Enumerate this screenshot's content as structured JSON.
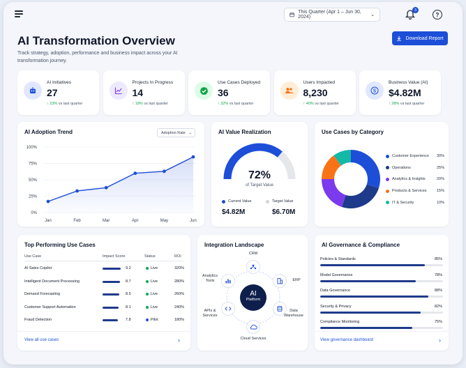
{
  "header": {
    "date_range": "This Quarter (Apr 1 – Jun 30, 2024)",
    "notifications": "3",
    "title": "AI Transformation Overview",
    "subtitle": "Track strategy, adoption, performance and business impact across your AI transformation journey.",
    "download_label": "Download Report"
  },
  "kpis": [
    {
      "label": "AI Initiatives",
      "value": "27",
      "delta": "↑ 23%",
      "delta_text": "vs last quarter",
      "icon": "robot-icon",
      "color": "#1d4ed8"
    },
    {
      "label": "Projects In Progress",
      "value": "14",
      "delta": "↑ 18%",
      "delta_text": "vs last quarter",
      "icon": "trend-chart-icon",
      "color": "#7c3aed"
    },
    {
      "label": "Use Cases Deployed",
      "value": "36",
      "delta": "↑ 32%",
      "delta_text": "vs last quarter",
      "icon": "check-circle-icon",
      "color": "#16a34a"
    },
    {
      "label": "Users Impacted",
      "value": "8,230",
      "delta": "↑ 40%",
      "delta_text": "vs last quarter",
      "icon": "users-icon",
      "color": "#f97316"
    },
    {
      "label": "Business Value (AI)",
      "value": "$4.82M",
      "delta": "↑ 28%",
      "delta_text": "vs last quarter",
      "icon": "dollar-icon",
      "color": "#1d4ed8"
    }
  ],
  "adoption": {
    "title": "AI Adoption Trend",
    "select_value": "Adoption Rate",
    "chart_data": {
      "type": "area",
      "categories": [
        "Jan",
        "Feb",
        "Mar",
        "Apr",
        "May",
        "Jun"
      ],
      "values": [
        17,
        33,
        38,
        60,
        63,
        85
      ],
      "yticks": [
        "0%",
        "25%",
        "50%",
        "75%",
        "100%"
      ],
      "ylim": [
        0,
        100
      ],
      "color": "#1d4ed8"
    }
  },
  "value_realization": {
    "title": "AI Value Realization",
    "percent": "72%",
    "percent_value": 72,
    "caption": "of Target Value",
    "current_label": "Current Value",
    "target_label": "Target Value",
    "current_value": "$4.82M",
    "target_value": "$6.70M"
  },
  "use_cases": {
    "title": "Use Cases by Category",
    "chart_data": {
      "type": "pie",
      "categories": [
        "Customer Experience",
        "Operations",
        "Analytics & Insights",
        "Products & Services",
        "IT & Security"
      ],
      "values": [
        30,
        25,
        20,
        15,
        10
      ],
      "labels": [
        "30%",
        "25%",
        "20%",
        "15%",
        "10%"
      ],
      "colors": [
        "#1d4ed8",
        "#1e3a8a",
        "#7c3aed",
        "#f97316",
        "#14b8a6"
      ]
    }
  },
  "top_use_cases": {
    "title": "Top Performing Use Cases",
    "headers": [
      "Use Case",
      "Impact Score",
      "Status",
      "ROI"
    ],
    "rows": [
      {
        "name": "AI Sales Copilot",
        "score": "9.2",
        "score_value": 9.2,
        "status": "Live",
        "status_color": "#16a34a",
        "roi": "320%"
      },
      {
        "name": "Intelligent Document Processing",
        "score": "8.7",
        "score_value": 8.7,
        "status": "Live",
        "status_color": "#16a34a",
        "roi": "280%"
      },
      {
        "name": "Demand Forecasting",
        "score": "8.5",
        "score_value": 8.5,
        "status": "Live",
        "status_color": "#16a34a",
        "roi": "260%"
      },
      {
        "name": "Customer Support Automation",
        "score": "8.1",
        "score_value": 8.1,
        "status": "Live",
        "status_color": "#16a34a",
        "roi": "240%"
      },
      {
        "name": "Fraud Detection",
        "score": "7.8",
        "score_value": 7.8,
        "status": "Pilot",
        "status_color": "#1d4ed8",
        "roi": "180%"
      }
    ],
    "link": "View all use cases"
  },
  "integration": {
    "title": "Integration Landscape",
    "center_title": "AI",
    "center_sub": "Platform",
    "nodes": [
      {
        "label": "CRM",
        "icon": "people-network-icon"
      },
      {
        "label": "ERP",
        "icon": "building-icon"
      },
      {
        "label": "Data Warehouse",
        "icon": "database-icon"
      },
      {
        "label": "Cloud Services",
        "icon": "cloud-icon"
      },
      {
        "label": "APIs & Services",
        "icon": "code-icon"
      },
      {
        "label": "Analytics Tools",
        "icon": "bar-chart-icon"
      }
    ]
  },
  "governance": {
    "title": "AI Governance & Compliance",
    "items": [
      {
        "label": "Policies & Standards",
        "pct": "85%",
        "value": 85
      },
      {
        "label": "Model Governance",
        "pct": "78%",
        "value": 78
      },
      {
        "label": "Data Governance",
        "pct": "88%",
        "value": 88
      },
      {
        "label": "Security & Privacy",
        "pct": "82%",
        "value": 82
      },
      {
        "label": "Compliance Monitoring",
        "pct": "75%",
        "value": 75
      }
    ],
    "link": "View governance dashboard"
  }
}
